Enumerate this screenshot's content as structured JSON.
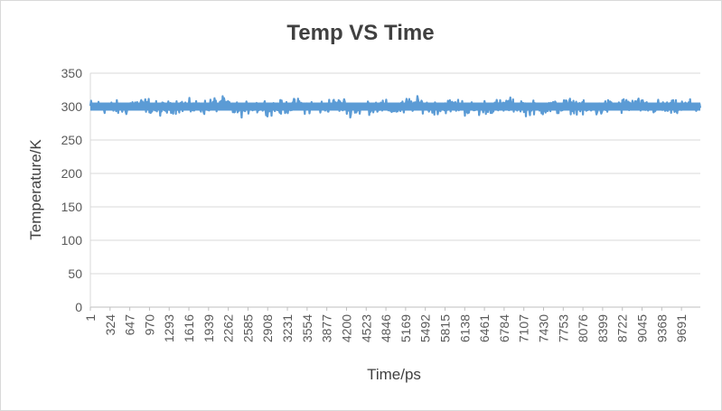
{
  "chart_data": {
    "type": "line",
    "title": "Temp VS Time",
    "xlabel": "Time/ps",
    "ylabel": "Temperature/K",
    "ylim": [
      0,
      350
    ],
    "yticks": [
      0,
      50,
      100,
      150,
      200,
      250,
      300,
      350
    ],
    "x_range": [
      1,
      10000
    ],
    "categories": [
      "1",
      "324",
      "647",
      "970",
      "1293",
      "1616",
      "1939",
      "2262",
      "2585",
      "2908",
      "3231",
      "3554",
      "3877",
      "4200",
      "4523",
      "4846",
      "5169",
      "5492",
      "5815",
      "6138",
      "6461",
      "6784",
      "7107",
      "7430",
      "7753",
      "8076",
      "8399",
      "8722",
      "9045",
      "9368",
      "9691"
    ],
    "grid": true,
    "legend": "none",
    "series": [
      {
        "color": "#5b9bd5",
        "mean": 300,
        "fluctuation": 8,
        "values": [
          300,
          298,
          302,
          297,
          301,
          299,
          303,
          296,
          300,
          298,
          301,
          299,
          302,
          297,
          300,
          298,
          303,
          299,
          301,
          297,
          300,
          302,
          298,
          299,
          301,
          296,
          300,
          302,
          299,
          298,
          300
        ]
      }
    ]
  },
  "colors": {
    "series": "#5b9bd5",
    "grid": "#d9d9d9",
    "text": "#595959",
    "title": "#404040"
  }
}
